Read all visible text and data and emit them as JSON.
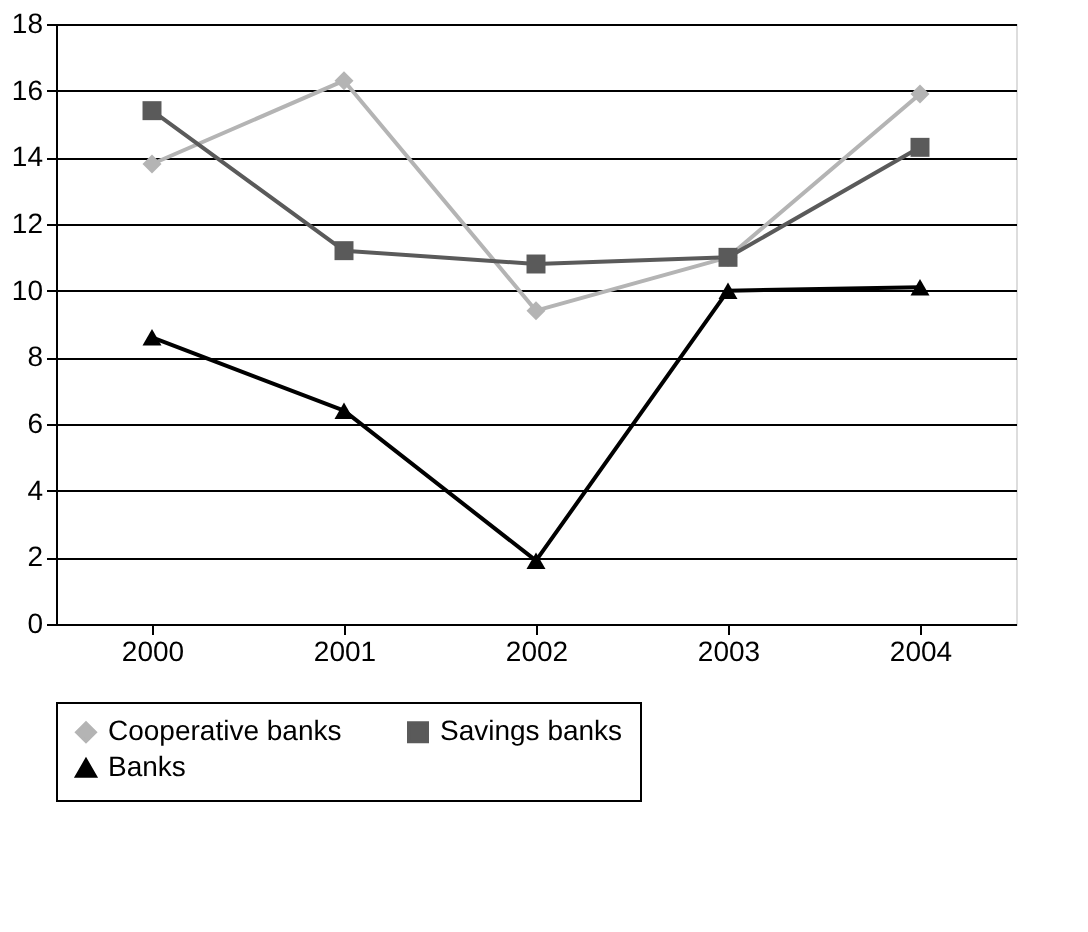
{
  "chart_data": {
    "type": "line",
    "categories": [
      "2000",
      "2001",
      "2002",
      "2003",
      "2004"
    ],
    "series": [
      {
        "name": "Cooperative banks",
        "color": "#b4b4b4",
        "marker": "diamond",
        "values": [
          13.8,
          16.3,
          9.4,
          11.0,
          15.9
        ]
      },
      {
        "name": "Savings banks",
        "color": "#5a5a5a",
        "marker": "square",
        "values": [
          15.4,
          11.2,
          10.8,
          11.0,
          14.3
        ]
      },
      {
        "name": "Banks",
        "color": "#000000",
        "marker": "triangle",
        "values": [
          8.6,
          6.4,
          1.9,
          10.0,
          10.1
        ]
      }
    ],
    "ylim": [
      0,
      18
    ],
    "yticks": [
      0,
      2,
      4,
      6,
      8,
      10,
      12,
      14,
      16,
      18
    ],
    "grid": "y",
    "legend": "bottom",
    "line_style": "solid"
  }
}
